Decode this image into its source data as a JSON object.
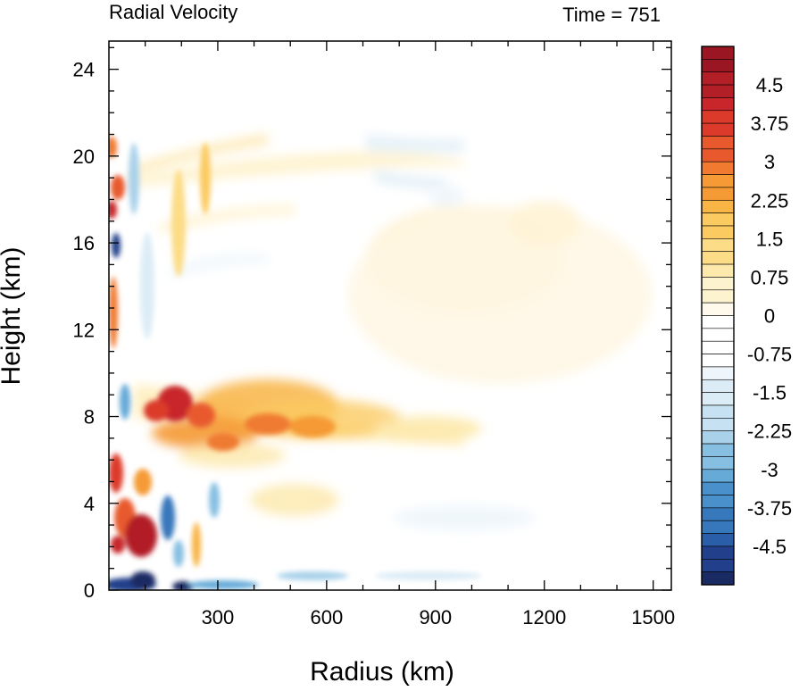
{
  "chart_data": {
    "type": "heatmap",
    "title_left": "Radial Velocity",
    "title_right": "Time = 751",
    "xlabel": "Radius (km)",
    "ylabel": "Height (km)",
    "xlim": [
      0,
      1550
    ],
    "ylim": [
      0,
      25.3
    ],
    "x_ticks": [
      300,
      600,
      900,
      1200,
      1500
    ],
    "x_tick_labels": [
      "300",
      "600",
      "900",
      "1200",
      "1500"
    ],
    "y_ticks": [
      0,
      4,
      8,
      12,
      16,
      20,
      24
    ],
    "y_tick_labels": [
      "0",
      "4",
      "8",
      "12",
      "16",
      "20",
      "24"
    ],
    "colorbar": {
      "levels": [
        -5.25,
        5.25
      ],
      "step": 0.25,
      "tick_values": [
        4.5,
        3.75,
        3,
        2.25,
        1.5,
        0.75,
        0,
        -0.75,
        -1.5,
        -2.25,
        -3,
        -3.75,
        -4.5
      ],
      "tick_labels": [
        "4.5",
        "3.75",
        "3",
        "2.25",
        "1.5",
        "0.75",
        "0",
        "-0.75",
        "-1.5",
        "-2.25",
        "-3",
        "-3.75",
        "-4.5"
      ],
      "colors_top_to_bottom": [
        "#9a1622",
        "#b21f26",
        "#c8262a",
        "#dc3a2b",
        "#e85a2e",
        "#ef7a30",
        "#f59a35",
        "#f8b445",
        "#fbcb62",
        "#fcdc86",
        "#fde9ab",
        "#fef3cf",
        "#fffaec",
        "#ffffff",
        "#ffffff",
        "#eef6fb",
        "#dcecf6",
        "#c6e1f1",
        "#a9d1ea",
        "#87bfe2",
        "#66aad8",
        "#4a91cb",
        "#3777bb",
        "#2a5ea9",
        "#213f8a",
        "#1a2a63"
      ]
    },
    "features": [
      {
        "x": 20,
        "y": 20.5,
        "value": 3.0
      },
      {
        "x": 35,
        "y": 17.5,
        "value": 3.5
      },
      {
        "x": 25,
        "y": 16.0,
        "value": -3.5
      },
      {
        "x": 25,
        "y": 13.0,
        "value": 2.5
      },
      {
        "x": 40,
        "y": 5.0,
        "value": 3.5
      },
      {
        "x": 100,
        "y": 2.3,
        "value": 4.5
      },
      {
        "x": 30,
        "y": 2.0,
        "value": 3.5
      },
      {
        "x": 180,
        "y": 8.5,
        "value": 4.0
      },
      {
        "x": 300,
        "y": 7.2,
        "value": 3.5
      },
      {
        "x": 450,
        "y": 7.0,
        "value": 2.0
      },
      {
        "x": 600,
        "y": 7.3,
        "value": 1.0
      },
      {
        "x": 150,
        "y": 3.0,
        "value": -3.0
      },
      {
        "x": 200,
        "y": 0.1,
        "value": -5.0
      },
      {
        "x": 80,
        "y": 0.2,
        "value": -4.5
      },
      {
        "x": 900,
        "y": 11.0,
        "value": 0.5
      },
      {
        "x": 800,
        "y": 20.0,
        "value": -0.75
      }
    ]
  }
}
